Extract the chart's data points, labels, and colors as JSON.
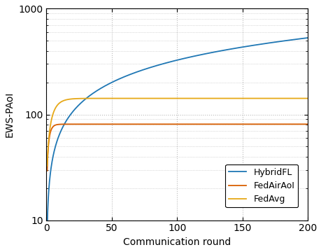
{
  "xlabel": "Communication round",
  "ylabel": "EWS-PAoI",
  "xlim": [
    0,
    200
  ],
  "ylim": [
    10,
    1000
  ],
  "xticks": [
    0,
    50,
    100,
    150,
    200
  ],
  "colors": {
    "HybridFL": "#1f77b4",
    "FedAirAoI": "#d95f02",
    "FedAvg": "#e6a817"
  },
  "legend_labels": [
    "HybridFL",
    "FedAirAoI",
    "FedAvg"
  ],
  "hybrid_a": 13.0,
  "hybrid_b": 0.7,
  "fedairaoi_base": 13.0,
  "fedairaoi_amp": 68.0,
  "fedairaoi_rate": 0.55,
  "fedavg_base": 20.0,
  "fedavg_amp": 122.0,
  "fedavg_rate": 0.22,
  "linewidth": 1.3,
  "grid_color": "#bbbbbb",
  "font_size": 10
}
